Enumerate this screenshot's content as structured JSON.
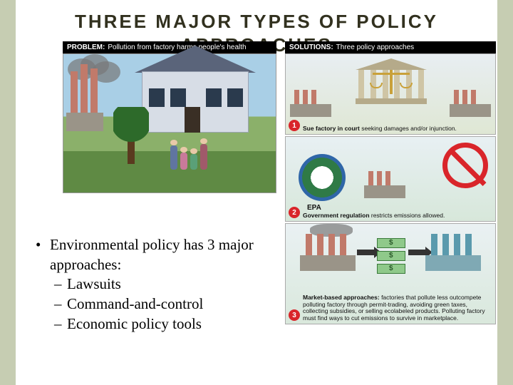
{
  "title_line1": "THREE MAJOR TYPES OF POLICY",
  "title_line2": "APPROACHES",
  "problem": {
    "label_bold": "PROBLEM:",
    "label_rest": "Pollution from factory harms people's health"
  },
  "solutions": {
    "label_bold": "SOLUTIONS:",
    "label_rest": "Three policy approaches",
    "panel1": {
      "num": "1",
      "cap_bold": "Sue factory in court",
      "cap_rest": " seeking damages and/or injunction."
    },
    "panel2": {
      "num": "2",
      "epa": "EPA",
      "cap_bold": "Government regulation",
      "cap_rest": " restricts emissions allowed."
    },
    "panel3": {
      "num": "3",
      "cap_bold": "Market-based approaches:",
      "cap_rest": " factories that pollute less outcompete polluting factory through permit-trading, avoiding green taxes, collecting subsidies, or selling ecolabeled products. Polluting factory must find ways to cut emissions to survive in marketplace."
    }
  },
  "bullets": {
    "main": "Environmental policy has 3 major approaches:",
    "s1": "Lawsuits",
    "s2": "Command-and-control",
    "s3": "Economic policy tools"
  },
  "colors": {
    "page_bg": "#c6cdb2",
    "slide_bg": "#ffffff",
    "title_color": "#32311f",
    "badge": "#d9252a"
  }
}
